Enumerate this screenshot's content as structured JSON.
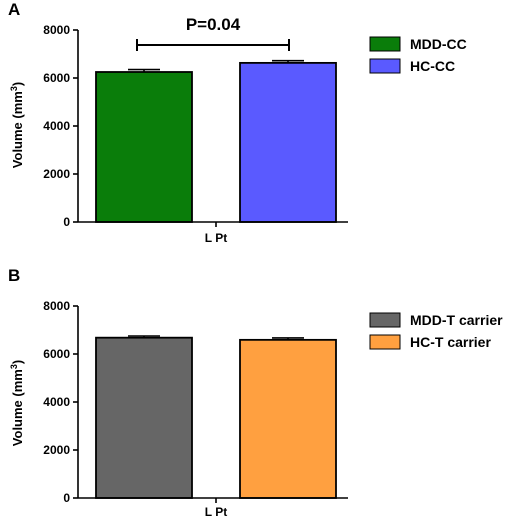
{
  "chart_data": [
    {
      "panel_label": "A",
      "type": "bar",
      "categories": [
        "L Pt"
      ],
      "series": [
        {
          "name": "MDD-CC",
          "values": [
            6250
          ],
          "error": [
            100
          ],
          "color": "#0a7d0a"
        },
        {
          "name": "HC-CC",
          "values": [
            6630
          ],
          "error": [
            90
          ],
          "color": "#5a5aff"
        }
      ],
      "ylabel": "Volume (mm3)",
      "ylabel_main": "Volume (mm",
      "ylabel_sup": "3",
      "ylabel_end": ")",
      "xlabel": "L Pt",
      "ylim": [
        0,
        8000
      ],
      "yticks": [
        "0",
        "2000",
        "4000",
        "6000",
        "8000"
      ],
      "legend_position": "right",
      "annotation": "P=0.04"
    },
    {
      "panel_label": "B",
      "type": "bar",
      "categories": [
        "L Pt"
      ],
      "series": [
        {
          "name": "MDD-T carrier",
          "values": [
            6680
          ],
          "error": [
            70
          ],
          "color": "#666666"
        },
        {
          "name": "HC-T carrier",
          "values": [
            6590
          ],
          "error": [
            80
          ],
          "color": "#ffa040"
        }
      ],
      "ylabel": "Volume (mm3)",
      "ylabel_main": "Volume (mm",
      "ylabel_sup": "3",
      "ylabel_end": ")",
      "xlabel": "L Pt",
      "ylim": [
        0,
        8000
      ],
      "yticks": [
        "0",
        "2000",
        "4000",
        "6000",
        "8000"
      ],
      "legend_position": "right"
    }
  ]
}
